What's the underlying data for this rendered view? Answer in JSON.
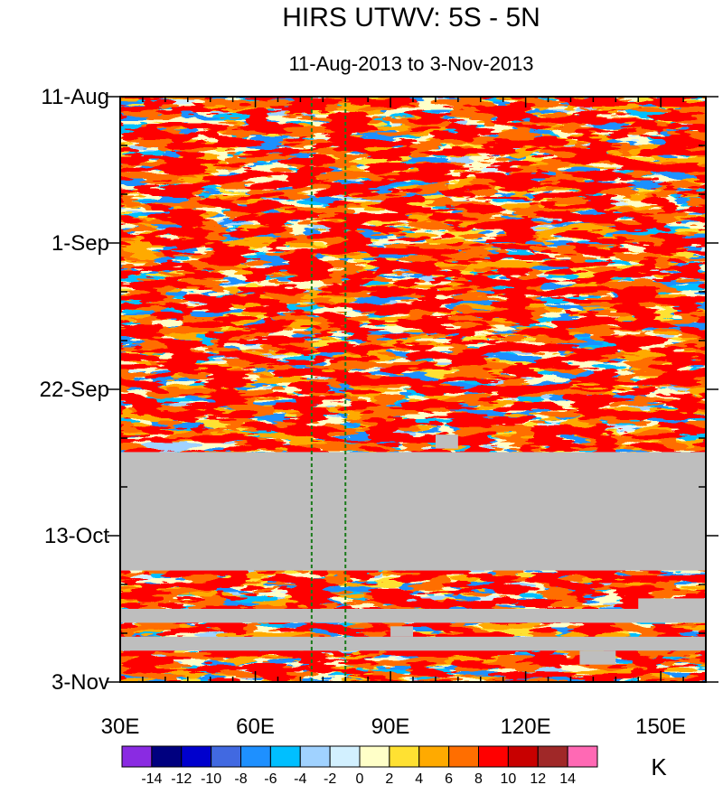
{
  "chart_data": {
    "type": "heatmap",
    "title": "HIRS UTWV: 5S - 5N",
    "subtitle": "11-Aug-2013 to 3-Nov-2013",
    "x_axis": {
      "range": [
        30,
        160
      ],
      "ticks": [
        30,
        60,
        90,
        120,
        150
      ],
      "tick_labels": [
        "30E",
        "60E",
        "90E",
        "120E",
        "150E"
      ]
    },
    "y_axis": {
      "range_days": [
        0,
        84
      ],
      "ticks_days": [
        0,
        21,
        42,
        63,
        84
      ],
      "tick_labels": [
        "11-Aug",
        "1-Sep",
        "22-Sep",
        "13-Oct",
        "3-Nov"
      ],
      "direction": "downward"
    },
    "reference_lines_lon": [
      72.5,
      80
    ],
    "missing_data": [
      {
        "day_start": 51,
        "day_end": 68,
        "lon_start": 30,
        "lon_end": 160
      },
      {
        "day_start": 73.5,
        "day_end": 75.5,
        "lon_start": 30,
        "lon_end": 160
      },
      {
        "day_start": 77.5,
        "day_end": 79.5,
        "lon_start": 30,
        "lon_end": 160
      },
      {
        "day_start": 48.5,
        "day_end": 50.5,
        "lon_start": 100,
        "lon_end": 105
      },
      {
        "day_start": 76,
        "day_end": 77.5,
        "lon_start": 90,
        "lon_end": 95
      },
      {
        "day_start": 72,
        "day_end": 73.5,
        "lon_start": 145,
        "lon_end": 160
      },
      {
        "day_start": 79.5,
        "day_end": 81.5,
        "lon_start": 132,
        "lon_end": 140
      }
    ],
    "colorbar": {
      "unit": "K",
      "levels": [
        -14,
        -12,
        -10,
        -8,
        -6,
        -4,
        -2,
        0,
        2,
        4,
        6,
        8,
        10,
        12,
        14
      ],
      "labels": [
        "-14",
        "-12",
        "-10",
        "-8",
        "-6",
        "-4",
        "-2",
        "0",
        "2",
        "4",
        "6",
        "8",
        "10",
        "12",
        "14"
      ],
      "colors": [
        "#8a2be2",
        "#00007f",
        "#0000cd",
        "#4169e1",
        "#1e90ff",
        "#00bfff",
        "#a0d2ff",
        "#d2f0ff",
        "#ffffc8",
        "#ffe132",
        "#ffaa00",
        "#ff6e00",
        "#ff0000",
        "#c80000",
        "#a02828",
        "#ff69b4"
      ]
    }
  }
}
